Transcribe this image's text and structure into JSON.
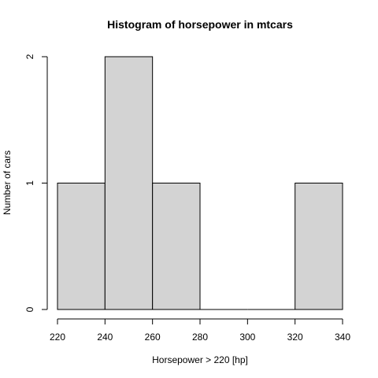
{
  "chart_data": {
    "type": "bar",
    "subtype": "histogram",
    "title": "Histogram of horsepower in mtcars",
    "xlabel": "Horsepower > 220 [hp]",
    "ylabel": "Number of cars",
    "bins": [
      {
        "start": 220,
        "end": 240,
        "count": 1
      },
      {
        "start": 240,
        "end": 260,
        "count": 2
      },
      {
        "start": 260,
        "end": 280,
        "count": 1
      },
      {
        "start": 280,
        "end": 300,
        "count": 0
      },
      {
        "start": 300,
        "end": 320,
        "count": 0
      },
      {
        "start": 320,
        "end": 340,
        "count": 1
      }
    ],
    "xlim": [
      220,
      340
    ],
    "ylim": [
      0,
      2
    ],
    "x_ticks": [
      "220",
      "240",
      "260",
      "280",
      "300",
      "320",
      "340"
    ],
    "y_ticks": [
      "0",
      "1",
      "2"
    ],
    "bar_fill": "#d3d3d3",
    "grid": false
  }
}
